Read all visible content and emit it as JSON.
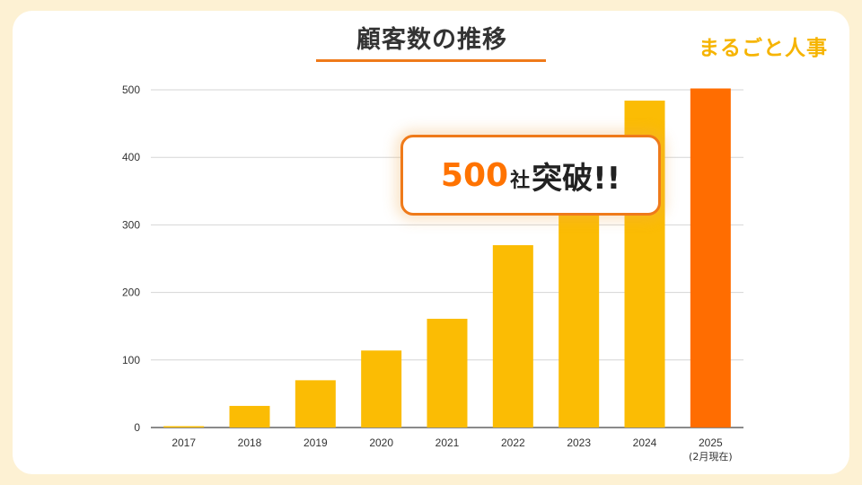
{
  "title": "顧客数の推移",
  "brand": "まるごと人事",
  "callout": {
    "number": "500",
    "unit": "社",
    "text": "突破!!"
  },
  "colors": {
    "bar": "#fbbc04",
    "highlight": "#ff6d01",
    "accent": "#ef7a1a",
    "background": "#fdf1d3"
  },
  "chart_data": {
    "type": "bar",
    "categories": [
      "2017",
      "2018",
      "2019",
      "2020",
      "2021",
      "2022",
      "2023",
      "2024",
      "2025"
    ],
    "category_sublabels": [
      "",
      "",
      "",
      "",
      "",
      "",
      "",
      "",
      "(2月現在)"
    ],
    "values": [
      2,
      32,
      70,
      114,
      161,
      270,
      380,
      484,
      502
    ],
    "highlight_index": 8,
    "ylim": [
      0,
      500
    ],
    "yticks": [
      0,
      100,
      200,
      300,
      400,
      500
    ],
    "grid": true,
    "xlabel": "",
    "ylabel": ""
  }
}
